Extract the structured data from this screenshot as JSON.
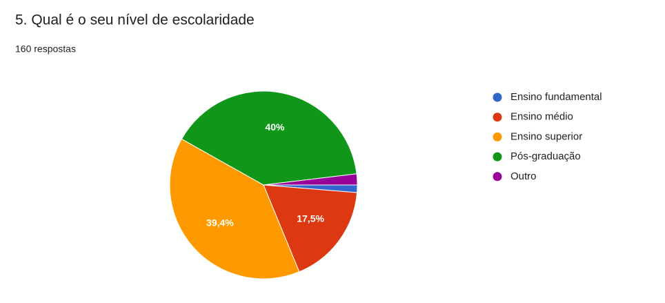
{
  "chart_data": {
    "type": "pie",
    "title": "5. Qual é o seu nível de escolaridade",
    "subtitle": "160 respostas",
    "categories": [
      "Ensino fundamental",
      "Ensino médio",
      "Ensino superior",
      "Pós-graduação",
      "Outro"
    ],
    "values": [
      1.3,
      17.5,
      39.4,
      40,
      1.9
    ],
    "value_labels": [
      null,
      "17,5%",
      "39,4%",
      "40%",
      null
    ],
    "colors": [
      "#3366cc",
      "#dc3912",
      "#ff9900",
      "#109618",
      "#990099"
    ],
    "legend": "right"
  }
}
